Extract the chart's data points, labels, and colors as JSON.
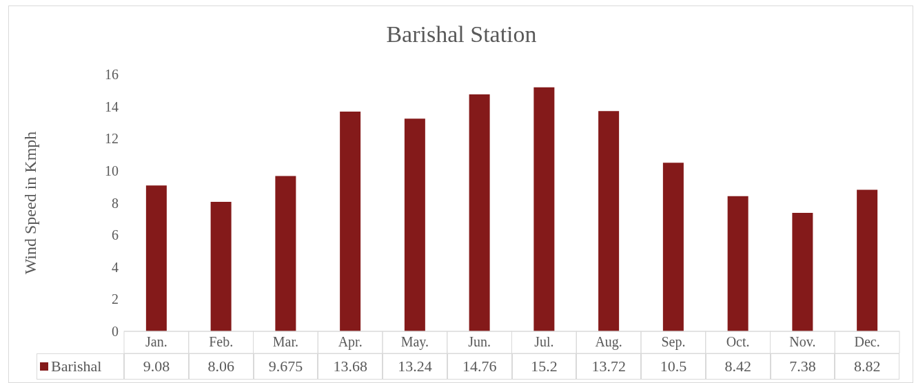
{
  "chart_data": {
    "type": "bar",
    "title": "Barishal Station",
    "ylabel": "Wind Speed in Kmph",
    "categories": [
      "Jan.",
      "Feb.",
      "Mar.",
      "Apr.",
      "May.",
      "Jun.",
      "Jul.",
      "Aug.",
      "Sep.",
      "Oct.",
      "Nov.",
      "Dec."
    ],
    "series": [
      {
        "name": "Barishal",
        "color": "#841a1a",
        "values": [
          9.08,
          8.06,
          9.675,
          13.68,
          13.24,
          14.76,
          15.2,
          13.72,
          10.5,
          8.42,
          7.38,
          8.82
        ]
      }
    ],
    "ylim": [
      0,
      16
    ],
    "yticks": [
      0,
      2,
      4,
      6,
      8,
      10,
      12,
      14,
      16
    ],
    "grid": false,
    "legend": "bottom",
    "data_labels": true
  }
}
